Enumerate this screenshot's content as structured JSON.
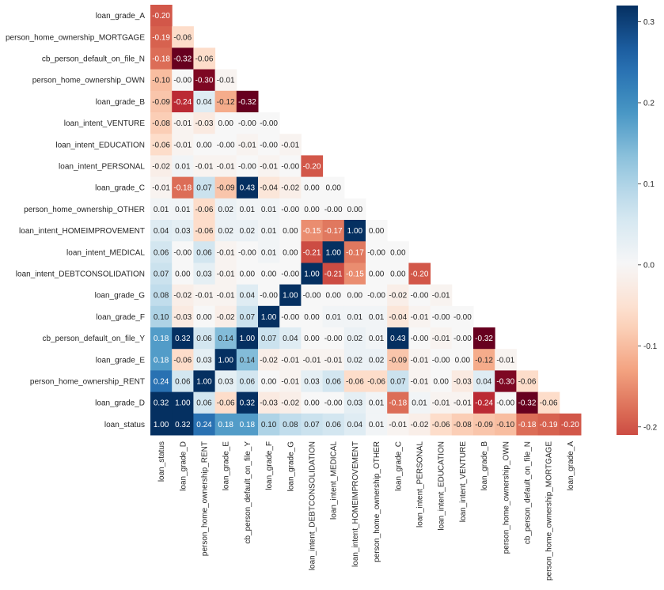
{
  "chart_data": {
    "type": "heatmap",
    "title": "",
    "xlabel": "",
    "ylabel": "",
    "mask": "lower-triangle",
    "colormap": "RdBu_r",
    "center": 0,
    "color_range": [
      -0.21,
      0.32
    ],
    "colorbar_ticks": [
      "0.3",
      "0.2",
      "0.1",
      "0.0",
      "-0.1",
      "-0.2"
    ],
    "row_labels": [
      "loan_grade_A",
      "person_home_ownership_MORTGAGE",
      "cb_person_default_on_file_N",
      "person_home_ownership_OWN",
      "loan_grade_B",
      "loan_intent_VENTURE",
      "loan_intent_EDUCATION",
      "loan_intent_PERSONAL",
      "loan_grade_C",
      "person_home_ownership_OTHER",
      "loan_intent_HOMEIMPROVEMENT",
      "loan_intent_MEDICAL",
      "loan_intent_DEBTCONSOLIDATION",
      "loan_grade_G",
      "loan_grade_F",
      "cb_person_default_on_file_Y",
      "loan_grade_E",
      "person_home_ownership_RENT",
      "loan_grade_D",
      "loan_status"
    ],
    "column_labels": [
      "loan_status",
      "loan_grade_D",
      "person_home_ownership_RENT",
      "loan_grade_E",
      "cb_person_default_on_file_Y",
      "loan_grade_F",
      "loan_grade_G",
      "loan_intent_DEBTCONSOLIDATION",
      "loan_intent_MEDICAL",
      "loan_intent_HOMEIMPROVEMENT",
      "person_home_ownership_OTHER",
      "loan_grade_C",
      "loan_intent_PERSONAL",
      "loan_intent_EDUCATION",
      "loan_intent_VENTURE",
      "loan_grade_B",
      "person_home_ownership_OWN",
      "cb_person_default_on_file_N",
      "person_home_ownership_MORTGAGE",
      "loan_grade_A"
    ],
    "values": [
      [
        -0.2
      ],
      [
        -0.19,
        -0.06
      ],
      [
        -0.18,
        -0.32,
        -0.06
      ],
      [
        -0.1,
        -0.0,
        -0.3,
        -0.01
      ],
      [
        -0.09,
        -0.24,
        0.04,
        -0.12,
        -0.32
      ],
      [
        -0.08,
        -0.01,
        -0.03,
        0.0,
        -0.0,
        -0.0
      ],
      [
        -0.06,
        -0.01,
        0.0,
        -0.0,
        -0.01,
        -0.0,
        -0.01
      ],
      [
        -0.02,
        0.01,
        -0.01,
        -0.01,
        -0.0,
        -0.01,
        -0.0,
        -0.2
      ],
      [
        -0.01,
        -0.18,
        0.07,
        -0.09,
        0.43,
        -0.04,
        -0.02,
        0.0,
        0.0
      ],
      [
        0.01,
        0.01,
        -0.06,
        0.02,
        0.01,
        0.01,
        -0.0,
        0.0,
        -0.0,
        0.0
      ],
      [
        0.04,
        0.03,
        -0.06,
        0.02,
        0.02,
        0.01,
        0.0,
        -0.15,
        -0.17,
        1.0,
        0.0
      ],
      [
        0.06,
        -0.0,
        0.06,
        -0.01,
        -0.0,
        0.01,
        0.0,
        -0.21,
        1.0,
        -0.17,
        -0.0,
        0.0
      ],
      [
        0.07,
        0.0,
        0.03,
        -0.01,
        0.0,
        0.0,
        -0.0,
        1.0,
        -0.21,
        -0.15,
        0.0,
        0.0,
        -0.2
      ],
      [
        0.08,
        -0.02,
        -0.01,
        -0.01,
        0.04,
        -0.0,
        1.0,
        -0.0,
        0.0,
        0.0,
        -0.0,
        -0.02,
        -0.0,
        -0.01
      ],
      [
        0.1,
        -0.03,
        0.0,
        -0.02,
        0.07,
        1.0,
        -0.0,
        0.0,
        0.01,
        0.01,
        0.01,
        -0.04,
        -0.01,
        -0.0,
        -0.0
      ],
      [
        0.18,
        0.32,
        0.06,
        0.14,
        1.0,
        0.07,
        0.04,
        0.0,
        -0.0,
        0.02,
        0.01,
        0.43,
        -0.0,
        -0.01,
        -0.0,
        -0.32
      ],
      [
        0.18,
        -0.06,
        0.03,
        1.0,
        0.14,
        -0.02,
        -0.01,
        -0.01,
        -0.01,
        0.02,
        0.02,
        -0.09,
        -0.01,
        -0.0,
        0.0,
        -0.12,
        -0.01
      ],
      [
        0.24,
        0.06,
        1.0,
        0.03,
        0.06,
        0.0,
        -0.01,
        0.03,
        0.06,
        -0.06,
        -0.06,
        0.07,
        -0.01,
        0.0,
        -0.03,
        0.04,
        -0.3,
        -0.06
      ],
      [
        0.32,
        1.0,
        0.06,
        -0.06,
        0.32,
        -0.03,
        -0.02,
        0.0,
        -0.0,
        0.03,
        0.01,
        -0.18,
        0.01,
        -0.01,
        -0.01,
        -0.24,
        -0.0,
        -0.32,
        -0.06
      ],
      [
        1.0,
        0.32,
        0.24,
        0.18,
        0.18,
        0.1,
        0.08,
        0.07,
        0.06,
        0.04,
        0.01,
        -0.01,
        -0.02,
        -0.06,
        -0.08,
        -0.09,
        -0.1,
        -0.18,
        -0.19,
        -0.2
      ]
    ]
  }
}
